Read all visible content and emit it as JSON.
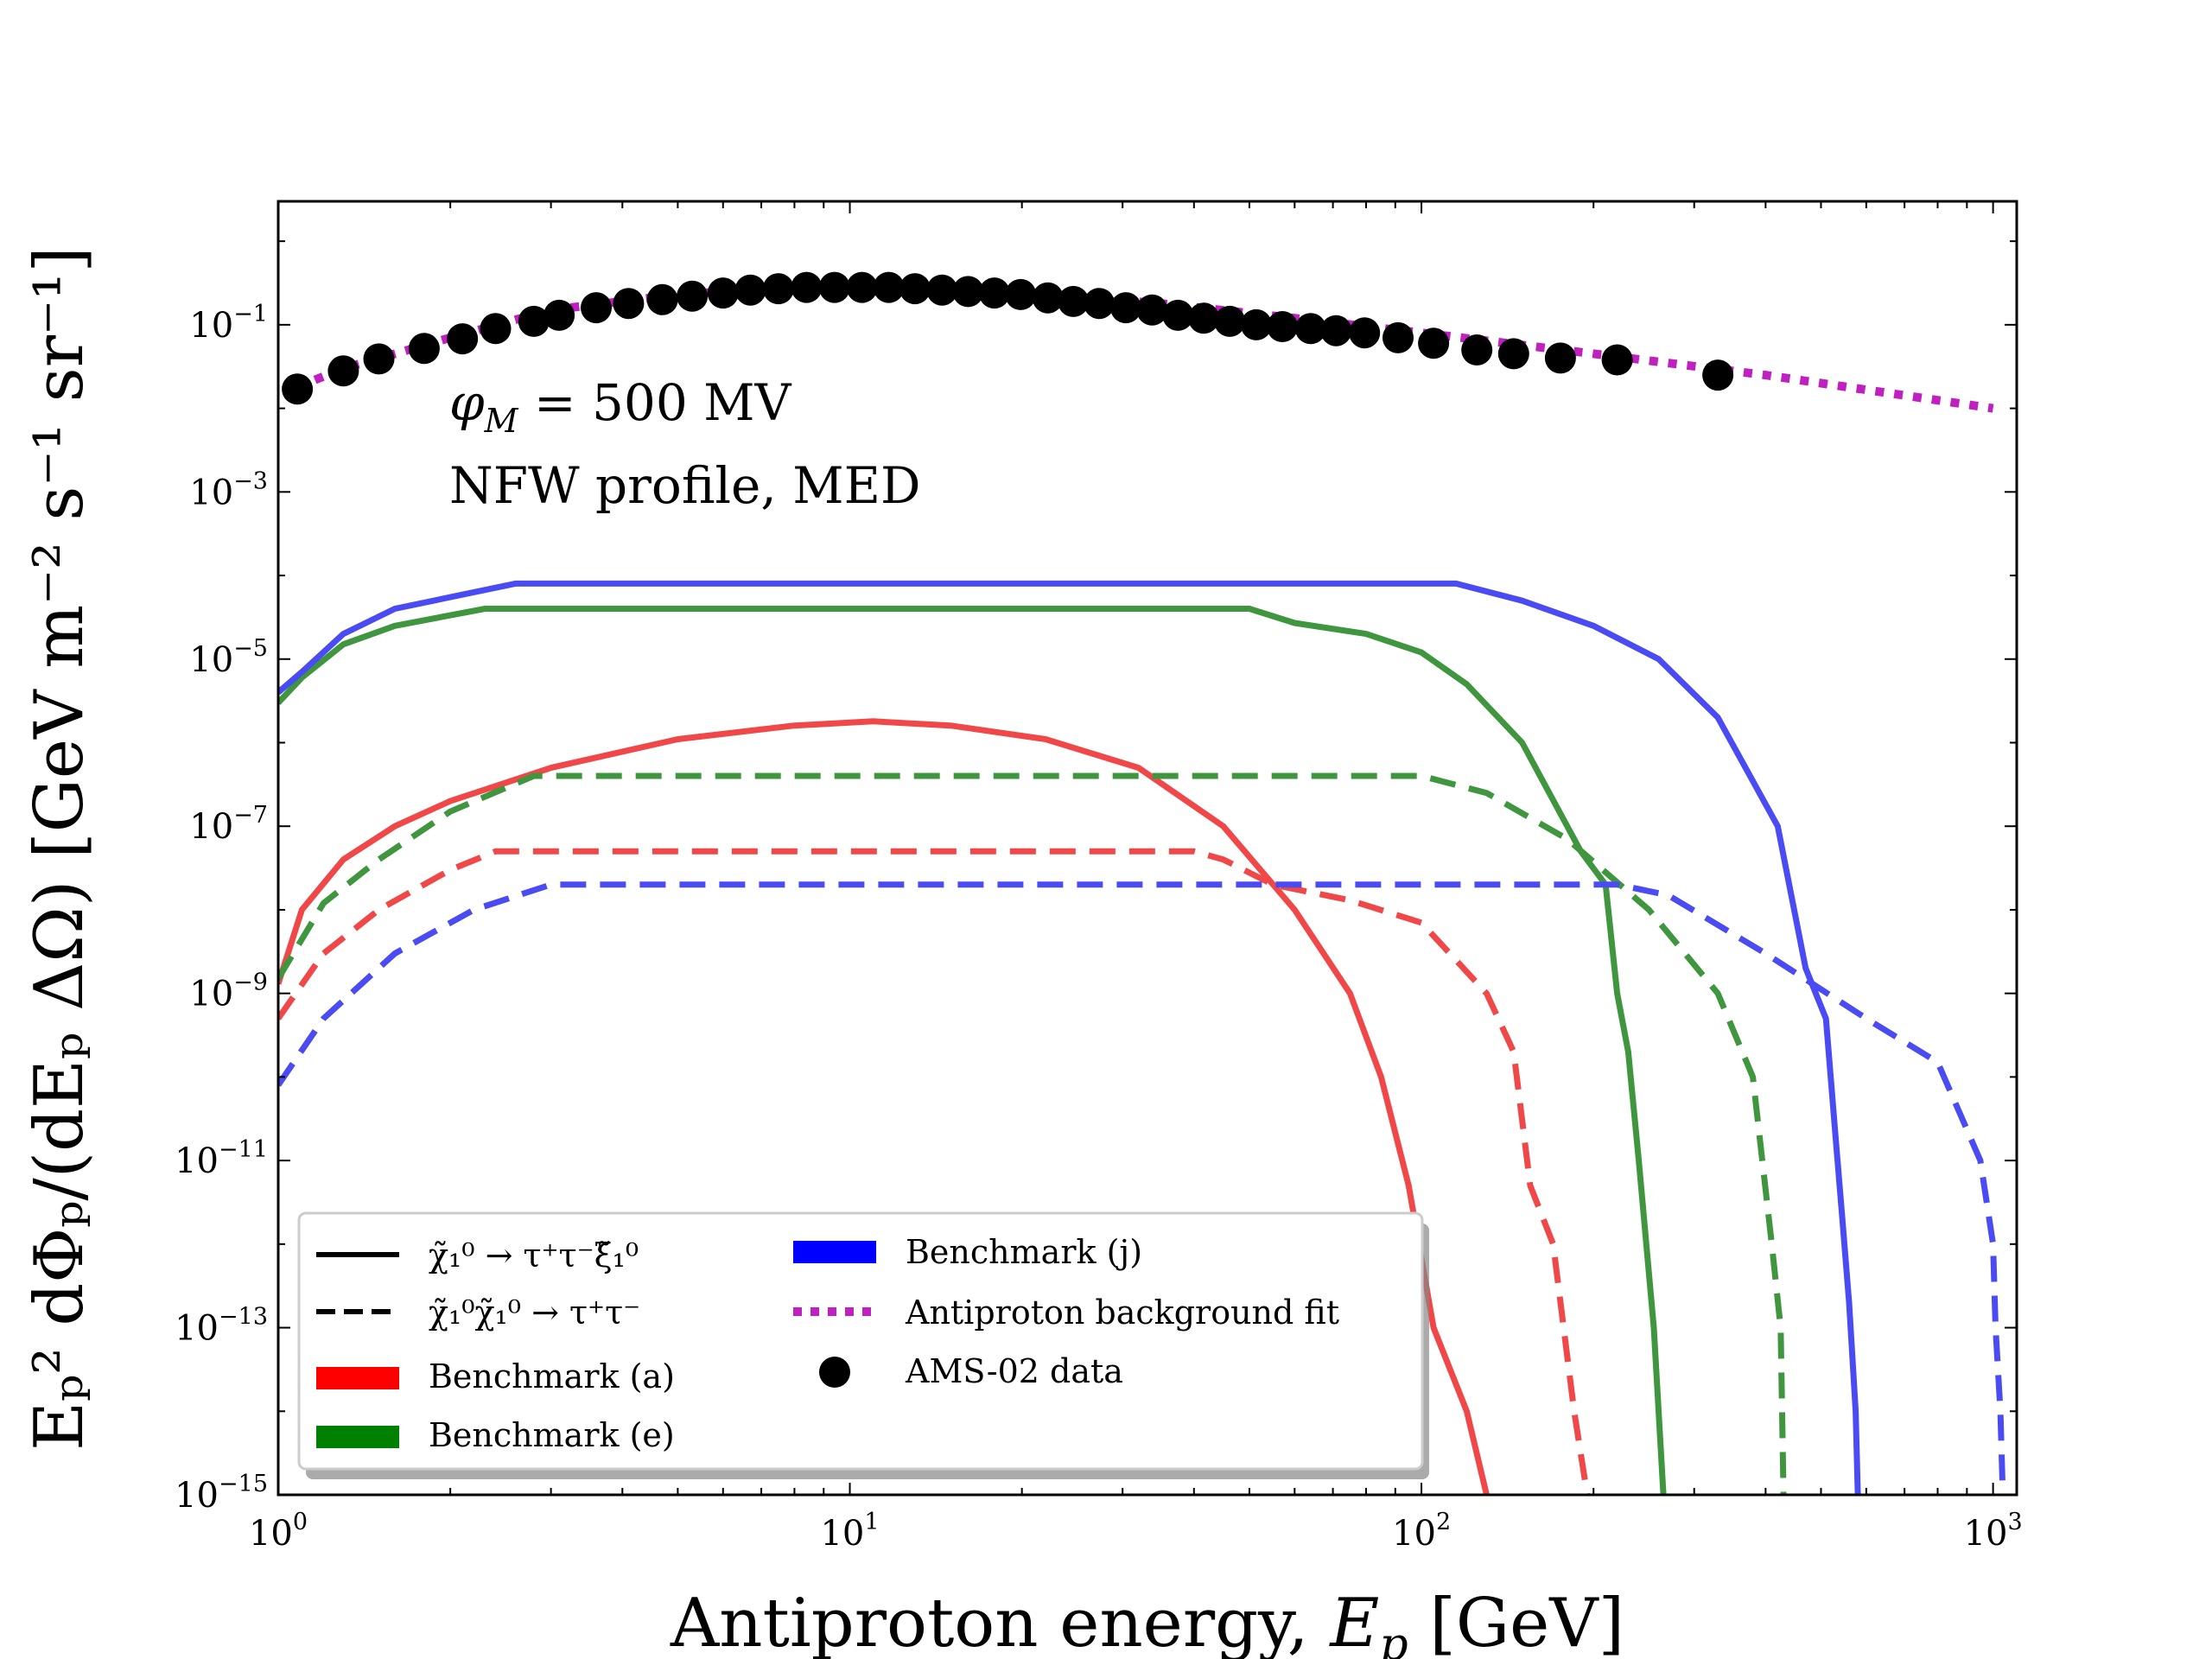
{
  "chart_data": {
    "type": "line",
    "xscale": "log",
    "yscale": "log",
    "xlim": [
      1,
      1100
    ],
    "ylim": [
      1e-15,
      3
    ],
    "xlabel": "Antiproton energy, E_p [GeV]",
    "ylabel": "E_p^2 dΦ_p/(dE_p ΔΩ) [GeV m^-2 s^-1 sr^-1]",
    "xlabel_parts": {
      "main": "Antiproton energy, ",
      "var": "E",
      "sub": "p",
      "unit": " [GeV]"
    },
    "ylabel_text": "Eₚ² dΦₚ/(dEₚ ΔΩ) [GeV m⁻² s⁻¹ sr⁻¹]",
    "x_ticks": [
      {
        "base": "10",
        "exp": "0",
        "value": 1
      },
      {
        "base": "10",
        "exp": "1",
        "value": 10
      },
      {
        "base": "10",
        "exp": "2",
        "value": 100
      },
      {
        "base": "10",
        "exp": "3",
        "value": 1000
      }
    ],
    "y_ticks": [
      {
        "base": "10",
        "exp": "−1",
        "value": 0.1
      },
      {
        "base": "10",
        "exp": "−3",
        "value": 0.001
      },
      {
        "base": "10",
        "exp": "−5",
        "value": 1e-05
      },
      {
        "base": "10",
        "exp": "−7",
        "value": 1e-07
      },
      {
        "base": "10",
        "exp": "−9",
        "value": 1e-09
      },
      {
        "base": "10",
        "exp": "−11",
        "value": 1e-11
      },
      {
        "base": "10",
        "exp": "−13",
        "value": 1e-13
      },
      {
        "base": "10",
        "exp": "−15",
        "value": 1e-15
      }
    ],
    "annotations": {
      "modulation": "φM = 500 MV",
      "modulation_parts": {
        "phi": "φ",
        "sub": "M",
        "rest": " = 500 MV"
      },
      "profile": "NFW profile, MED"
    },
    "colors": {
      "red": "#f04848",
      "green": "#3f963f",
      "blue": "#4b4bf3",
      "magenta": "#c020c0",
      "black": "#000000",
      "legend_red": "#ff0000",
      "legend_green": "#008000",
      "legend_blue": "#0000ff"
    },
    "legend": [
      {
        "label": "χ̃₁⁰ → τ⁺τ⁻ξ̃₁⁰",
        "style": "solid-line",
        "color": "#000000"
      },
      {
        "label": "χ̃₁⁰χ̃₁⁰ → τ⁺τ⁻",
        "style": "dashed-line",
        "color": "#000000"
      },
      {
        "label": "Benchmark (a)",
        "style": "patch",
        "color": "#ff0000"
      },
      {
        "label": "Benchmark (e)",
        "style": "patch",
        "color": "#008000"
      },
      {
        "label": "Benchmark (j)",
        "style": "patch",
        "color": "#0000ff"
      },
      {
        "label": "Antiproton background fit",
        "style": "dotted-line",
        "color": "#c020c0"
      },
      {
        "label": "AMS-02 data",
        "style": "marker",
        "color": "#000000"
      }
    ],
    "series": [
      {
        "name": "Benchmark (a) three-body",
        "style": "solid",
        "color": "red",
        "points": [
          [
            1.0,
            1.3e-09
          ],
          [
            1.1,
            1e-08
          ],
          [
            1.3,
            4e-08
          ],
          [
            1.6,
            1e-07
          ],
          [
            2.0,
            2e-07
          ],
          [
            3.0,
            5e-07
          ],
          [
            5.0,
            1.1e-06
          ],
          [
            8.0,
            1.6e-06
          ],
          [
            11,
            1.8e-06
          ],
          [
            15,
            1.6e-06
          ],
          [
            22,
            1.1e-06
          ],
          [
            32,
            5e-07
          ],
          [
            45,
            1e-07
          ],
          [
            60,
            1e-08
          ],
          [
            75,
            1e-09
          ],
          [
            85,
            1e-10
          ],
          [
            95,
            5e-12
          ],
          [
            105,
            1e-13
          ],
          [
            120,
            1e-14
          ],
          [
            130,
            1e-15
          ]
        ]
      },
      {
        "name": "Benchmark (a) two-body",
        "style": "dashed",
        "color": "red",
        "points": [
          [
            1.0,
            5e-10
          ],
          [
            1.2,
            3e-09
          ],
          [
            1.5,
            1e-08
          ],
          [
            2.0,
            3e-08
          ],
          [
            2.4,
            5e-08
          ],
          [
            40,
            5e-08
          ],
          [
            45,
            4e-08
          ],
          [
            55,
            2e-08
          ],
          [
            75,
            1.3e-08
          ],
          [
            100,
            7e-09
          ],
          [
            130,
            1e-09
          ],
          [
            145,
            2e-10
          ],
          [
            155,
            5e-12
          ],
          [
            170,
            1e-12
          ],
          [
            185,
            1e-14
          ],
          [
            195,
            1e-15
          ]
        ]
      },
      {
        "name": "Benchmark (e) three-body",
        "style": "solid",
        "color": "green",
        "points": [
          [
            1.0,
            3e-06
          ],
          [
            1.1,
            6e-06
          ],
          [
            1.3,
            1.5e-05
          ],
          [
            1.6,
            2.5e-05
          ],
          [
            2.3,
            4e-05
          ],
          [
            50,
            4e-05
          ],
          [
            60,
            2.7e-05
          ],
          [
            80,
            2e-05
          ],
          [
            100,
            1.2e-05
          ],
          [
            120,
            5e-06
          ],
          [
            150,
            1e-06
          ],
          [
            190,
            5e-08
          ],
          [
            210,
            2e-08
          ],
          [
            220,
            1e-09
          ],
          [
            230,
            2e-10
          ],
          [
            240,
            1e-11
          ],
          [
            255,
            1e-13
          ],
          [
            265,
            1e-15
          ]
        ]
      },
      {
        "name": "Benchmark (e) two-body",
        "style": "dashed",
        "color": "green",
        "points": [
          [
            1.0,
            1.5e-09
          ],
          [
            1.2,
            1.2e-08
          ],
          [
            1.5,
            4e-08
          ],
          [
            2.0,
            1.5e-07
          ],
          [
            2.8,
            4e-07
          ],
          [
            100,
            4e-07
          ],
          [
            130,
            2.5e-07
          ],
          [
            180,
            7e-08
          ],
          [
            250,
            1e-08
          ],
          [
            330,
            1e-09
          ],
          [
            380,
            1e-10
          ],
          [
            410,
            1e-12
          ],
          [
            425,
            1e-13
          ],
          [
            430,
            1e-15
          ]
        ]
      },
      {
        "name": "Benchmark (j) three-body",
        "style": "solid",
        "color": "blue",
        "points": [
          [
            1.0,
            4e-06
          ],
          [
            1.1,
            7e-06
          ],
          [
            1.3,
            2e-05
          ],
          [
            1.6,
            4e-05
          ],
          [
            2.6,
            8e-05
          ],
          [
            115,
            8e-05
          ],
          [
            150,
            5e-05
          ],
          [
            200,
            2.5e-05
          ],
          [
            260,
            1e-05
          ],
          [
            330,
            2e-06
          ],
          [
            420,
            1e-07
          ],
          [
            470,
            2e-09
          ],
          [
            510,
            5e-10
          ],
          [
            530,
            2e-11
          ],
          [
            545,
            2e-12
          ],
          [
            560,
            2e-13
          ],
          [
            575,
            1e-14
          ],
          [
            580,
            1e-15
          ]
        ]
      },
      {
        "name": "Benchmark (j) two-body",
        "style": "dashed",
        "color": "blue",
        "points": [
          [
            1.0,
            8e-11
          ],
          [
            1.2,
            5e-10
          ],
          [
            1.6,
            3e-09
          ],
          [
            2.2,
            1e-08
          ],
          [
            3.0,
            2e-08
          ],
          [
            220,
            2e-08
          ],
          [
            270,
            1.5e-08
          ],
          [
            400,
            3e-09
          ],
          [
            600,
            5e-10
          ],
          [
            800,
            1.5e-10
          ],
          [
            950,
            1e-11
          ],
          [
            1000,
            1e-12
          ],
          [
            1010,
            1e-13
          ],
          [
            1030,
            1e-14
          ],
          [
            1040,
            1e-15
          ]
        ]
      },
      {
        "name": "Antiproton background fit",
        "style": "dotted",
        "color": "magenta",
        "points": [
          [
            1.08,
            0.018
          ],
          [
            1.3,
            0.03
          ],
          [
            1.6,
            0.045
          ],
          [
            2.0,
            0.07
          ],
          [
            3.0,
            0.15
          ],
          [
            5.0,
            0.23
          ],
          [
            8.0,
            0.28
          ],
          [
            12,
            0.28
          ],
          [
            20,
            0.24
          ],
          [
            35,
            0.18
          ],
          [
            60,
            0.12
          ],
          [
            100,
            0.08
          ],
          [
            200,
            0.045
          ],
          [
            400,
            0.025
          ],
          [
            1000,
            0.01
          ]
        ]
      }
    ],
    "ams02_data": {
      "x": [
        1.08,
        1.3,
        1.5,
        1.8,
        2.1,
        2.4,
        2.8,
        3.1,
        3.6,
        4.1,
        4.7,
        5.3,
        6.0,
        6.7,
        7.5,
        8.4,
        9.4,
        10.5,
        11.7,
        13.0,
        14.5,
        16.1,
        17.9,
        19.9,
        22.2,
        24.6,
        27.3,
        30.4,
        33.8,
        37.5,
        41.6,
        46.2,
        51.4,
        57.1,
        64.0,
        70.9,
        79.5,
        91.0,
        105,
        125,
        145,
        175,
        220,
        330
      ],
      "y": [
        0.017,
        0.028,
        0.039,
        0.052,
        0.068,
        0.09,
        0.11,
        0.13,
        0.16,
        0.18,
        0.2,
        0.22,
        0.24,
        0.26,
        0.27,
        0.28,
        0.28,
        0.28,
        0.28,
        0.27,
        0.26,
        0.25,
        0.24,
        0.23,
        0.21,
        0.19,
        0.18,
        0.16,
        0.15,
        0.13,
        0.12,
        0.11,
        0.1,
        0.095,
        0.09,
        0.085,
        0.08,
        0.07,
        0.06,
        0.05,
        0.045,
        0.04,
        0.038,
        0.025
      ]
    }
  }
}
